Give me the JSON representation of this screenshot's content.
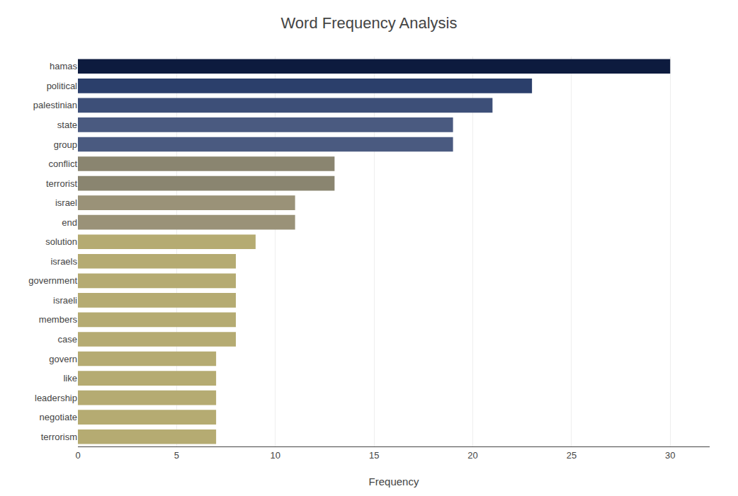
{
  "chart_data": {
    "type": "bar",
    "orientation": "horizontal",
    "title": "Word Frequency Analysis",
    "xlabel": "Frequency",
    "categories": [
      "hamas",
      "political",
      "palestinian",
      "state",
      "group",
      "conflict",
      "terrorist",
      "israel",
      "end",
      "solution",
      "israels",
      "government",
      "israeli",
      "members",
      "case",
      "govern",
      "like",
      "leadership",
      "negotiate",
      "terrorism"
    ],
    "values": [
      30,
      23,
      21,
      19,
      19,
      13,
      13,
      11,
      11,
      9,
      8,
      8,
      8,
      8,
      8,
      7,
      7,
      7,
      7,
      7
    ],
    "colors": [
      "#0d1b3e",
      "#2b3f6b",
      "#3d4f78",
      "#4a5a80",
      "#4a5a80",
      "#8a8570",
      "#8a8570",
      "#9a9278",
      "#9a9278",
      "#b5ab72",
      "#b5ab72",
      "#b5ab72",
      "#b5ab72",
      "#b5ab72",
      "#b5ab72",
      "#b5ab72",
      "#b5ab72",
      "#b5ab72",
      "#b5ab72",
      "#b5ab72"
    ],
    "xlim": [
      0,
      32
    ],
    "xticks": [
      0,
      5,
      10,
      15,
      20,
      25,
      30
    ],
    "grid": true
  }
}
